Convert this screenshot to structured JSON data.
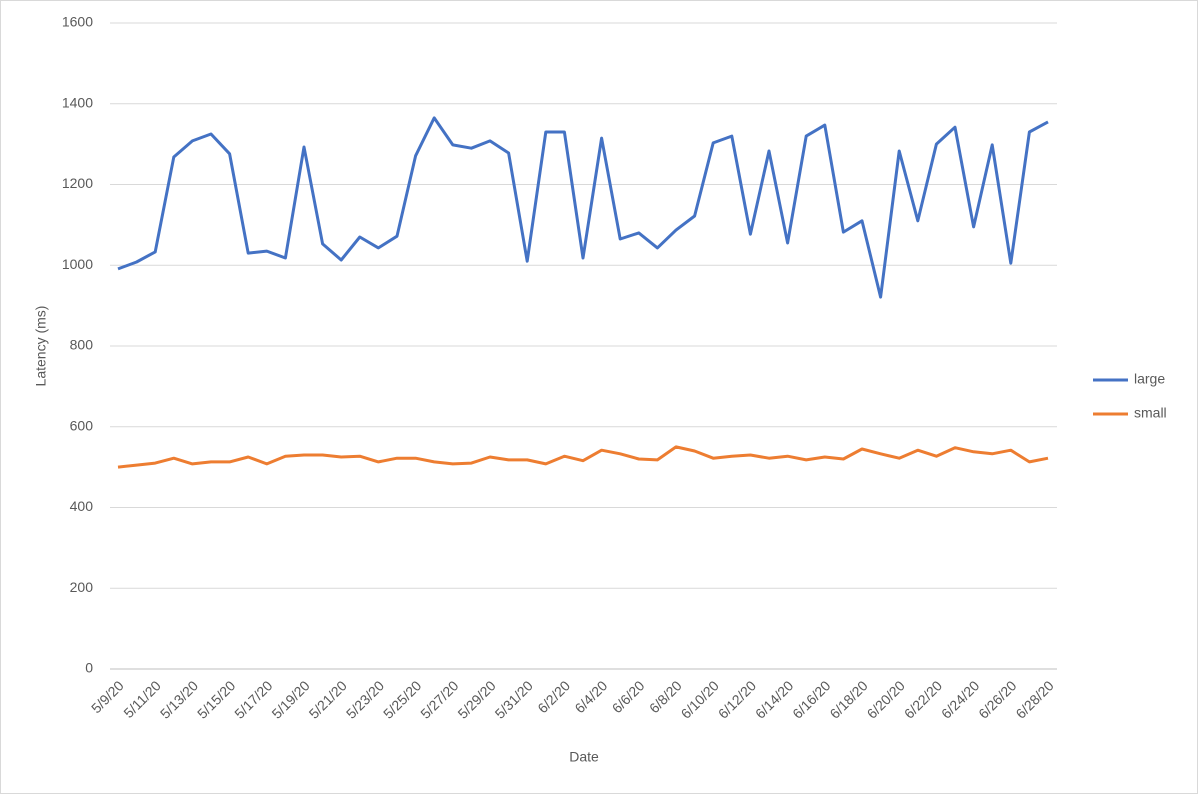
{
  "chart_data": {
    "type": "line",
    "xlabel": "Date",
    "ylabel": "Latency (ms)",
    "categories": [
      "5/9/20",
      null,
      "5/11/20",
      null,
      "5/13/20",
      null,
      "5/15/20",
      null,
      "5/17/20",
      null,
      "5/19/20",
      null,
      "5/21/20",
      null,
      "5/23/20",
      null,
      "5/25/20",
      null,
      "5/27/20",
      null,
      "5/29/20",
      null,
      "5/31/20",
      null,
      "6/2/20",
      null,
      "6/4/20",
      null,
      "6/6/20",
      null,
      "6/8/20",
      null,
      "6/10/20",
      null,
      "6/12/20",
      null,
      "6/14/20",
      null,
      "6/16/20",
      null,
      "6/18/20",
      null,
      "6/20/20",
      null,
      "6/22/20",
      null,
      "6/24/20",
      null,
      "6/26/20",
      null,
      "6/28/20"
    ],
    "series": [
      {
        "name": "large",
        "color": "#4472c4",
        "values": [
          991,
          1008,
          1033,
          1268,
          1308,
          1325,
          1276,
          1030,
          1035,
          1018,
          1293,
          1053,
          1013,
          1070,
          1043,
          1072,
          1271,
          1365,
          1298,
          1290,
          1308,
          1278,
          1010,
          1330,
          1330,
          1018,
          1315,
          1065,
          1080,
          1043,
          1087,
          1122,
          1303,
          1320,
          1077,
          1283,
          1055,
          1320,
          1347,
          1082,
          1110,
          921,
          1283,
          1110,
          1300,
          1342,
          1095,
          1298,
          1005,
          1330,
          1355
        ]
      },
      {
        "name": "small",
        "color": "#ed7d31",
        "values": [
          500,
          505,
          510,
          522,
          508,
          513,
          513,
          525,
          508,
          527,
          530,
          530,
          525,
          527,
          513,
          522,
          522,
          513,
          508,
          510,
          525,
          518,
          518,
          508,
          527,
          516,
          542,
          533,
          520,
          518,
          550,
          540,
          522,
          527,
          530,
          522,
          527,
          518,
          525,
          520,
          545,
          533,
          522,
          542,
          527,
          548,
          538,
          533,
          542,
          513,
          522
        ]
      }
    ],
    "ylim": [
      0,
      1600
    ],
    "yticks": [
      0,
      200,
      400,
      600,
      800,
      1000,
      1200,
      1400,
      1600
    ],
    "grid": true,
    "legend": "right"
  }
}
